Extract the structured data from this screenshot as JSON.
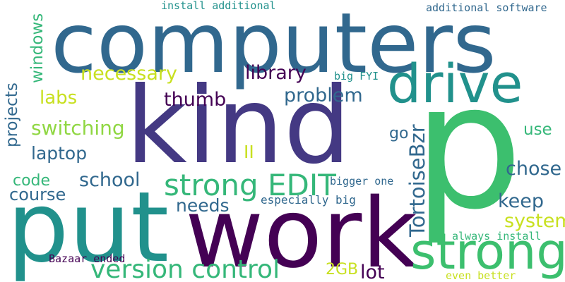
{
  "word_cloud": {
    "palette": {
      "purple-dark": "#440154",
      "indigo": "#443983",
      "blue": "#31688e",
      "teal": "#21918c",
      "green-teal": "#35b779",
      "green": "#3cbf6e",
      "lime": "#90d743",
      "yellow": "#c8e020"
    },
    "words": [
      {
        "id": "p",
        "text": "p"
      },
      {
        "id": "computers",
        "text": "computers"
      },
      {
        "id": "kind",
        "text": "kind"
      },
      {
        "id": "put",
        "text": "put"
      },
      {
        "id": "work",
        "text": "work"
      },
      {
        "id": "drive",
        "text": "drive"
      },
      {
        "id": "strong",
        "text": "strong"
      },
      {
        "id": "strong-edit",
        "text": "strong EDIT"
      },
      {
        "id": "version-control",
        "text": "version control"
      },
      {
        "id": "install-additional",
        "text": "install additional"
      },
      {
        "id": "additional-software",
        "text": "additional software"
      },
      {
        "id": "necessary",
        "text": "necessary"
      },
      {
        "id": "library",
        "text": "library"
      },
      {
        "id": "big-fyi",
        "text": "big FYI"
      },
      {
        "id": "labs",
        "text": "labs"
      },
      {
        "id": "thumb",
        "text": "thumb"
      },
      {
        "id": "problem",
        "text": "problem"
      },
      {
        "id": "switching",
        "text": "switching"
      },
      {
        "id": "go",
        "text": "go"
      },
      {
        "id": "use",
        "text": "use"
      },
      {
        "id": "laptop",
        "text": "laptop"
      },
      {
        "id": "ii",
        "text": "II"
      },
      {
        "id": "chose",
        "text": "chose"
      },
      {
        "id": "code",
        "text": "code"
      },
      {
        "id": "school",
        "text": "school"
      },
      {
        "id": "course",
        "text": "course"
      },
      {
        "id": "bigger-one",
        "text": "bigger one"
      },
      {
        "id": "needs",
        "text": "needs"
      },
      {
        "id": "especially-big",
        "text": "especially big"
      },
      {
        "id": "keep",
        "text": "keep"
      },
      {
        "id": "system",
        "text": "system"
      },
      {
        "id": "always-install",
        "text": "always install"
      },
      {
        "id": "bazaar-ended",
        "text": "Bazaar ended"
      },
      {
        "id": "2gb",
        "text": "2GB"
      },
      {
        "id": "lot",
        "text": "lot"
      },
      {
        "id": "even-better",
        "text": "even better"
      },
      {
        "id": "windows",
        "text": "windows"
      },
      {
        "id": "projects",
        "text": "projects"
      },
      {
        "id": "tortoisebzr",
        "text": "TortoiseBzr"
      }
    ]
  }
}
